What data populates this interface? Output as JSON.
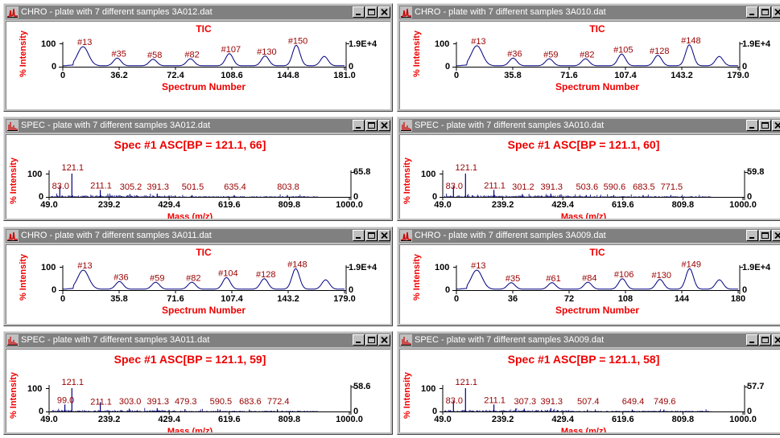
{
  "windows": [
    {
      "kind": "chro",
      "col": 0,
      "row": 0,
      "window_title": "CHRO - plate with 7 different samples 3A012.dat",
      "plot_title": "TIC",
      "y_label": "% Intensity",
      "y_top": "100",
      "y_zero": "0",
      "right_top": "1.9E+4",
      "right_zero": "0",
      "x_label": "Spectrum Number",
      "x_ticks": [
        "0",
        "36.2",
        "72.4",
        "108.6",
        "144.8",
        "181.0"
      ],
      "x_max": 181,
      "peaks": [
        {
          "label": "#13",
          "x": 13,
          "h": 0.82
        },
        {
          "label": "#35",
          "x": 35,
          "h": 0.33
        },
        {
          "label": "#58",
          "x": 58,
          "h": 0.28
        },
        {
          "label": "#82",
          "x": 82,
          "h": 0.3
        },
        {
          "label": "#107",
          "x": 107,
          "h": 0.52
        },
        {
          "label": "#130",
          "x": 130,
          "h": 0.42
        },
        {
          "label": "#150",
          "x": 150,
          "h": 0.88
        },
        {
          "label": "",
          "x": 168,
          "h": 0.4
        }
      ]
    },
    {
      "kind": "chro",
      "col": 1,
      "row": 0,
      "window_title": "CHRO - plate with 7 different samples 3A010.dat",
      "plot_title": "TIC",
      "y_label": "% Intensity",
      "y_top": "100",
      "y_zero": "0",
      "right_top": "1.9E+4",
      "right_zero": "0",
      "x_label": "Spectrum Number",
      "x_ticks": [
        "0",
        "35.8",
        "71.6",
        "107.4",
        "143.2",
        "179.0"
      ],
      "x_max": 179,
      "peaks": [
        {
          "label": "#13",
          "x": 13,
          "h": 0.86
        },
        {
          "label": "#36",
          "x": 36,
          "h": 0.33
        },
        {
          "label": "#59",
          "x": 59,
          "h": 0.3
        },
        {
          "label": "#82",
          "x": 82,
          "h": 0.3
        },
        {
          "label": "#105",
          "x": 105,
          "h": 0.5
        },
        {
          "label": "#128",
          "x": 128,
          "h": 0.45
        },
        {
          "label": "#148",
          "x": 148,
          "h": 0.9
        },
        {
          "label": "",
          "x": 167,
          "h": 0.4
        }
      ]
    },
    {
      "kind": "spec",
      "col": 0,
      "row": 1,
      "window_title": "SPEC - plate with 7 different samples 3A012.dat",
      "plot_title": "Spec #1 ASC[BP = 121.1, 66]",
      "y_label": "% Intensity",
      "y_top": "100",
      "y_zero": "0",
      "right_top": "65.8",
      "right_zero": "0",
      "x_label": "Mass (m/z)",
      "x_ticks": [
        "49.0",
        "239.2",
        "429.4",
        "619.6",
        "809.8",
        "1000.0"
      ],
      "x_min": 49,
      "x_max": 1000,
      "peaks": [
        {
          "label": "83.0",
          "x": 83,
          "h": 0.45
        },
        {
          "label": "121.1",
          "x": 121.1,
          "h": 1.0
        },
        {
          "label": "211.1",
          "x": 211.1,
          "h": 0.3
        },
        {
          "label": "305.2",
          "x": 305.2,
          "h": 0.12
        },
        {
          "label": "391.3",
          "x": 391.3,
          "h": 0.14
        },
        {
          "label": "501.5",
          "x": 501.5,
          "h": 0.08
        },
        {
          "label": "635.4",
          "x": 635.4,
          "h": 0.08
        },
        {
          "label": "803.8",
          "x": 803.8,
          "h": 0.08
        }
      ]
    },
    {
      "kind": "spec",
      "col": 1,
      "row": 1,
      "window_title": "SPEC - plate with 7 different samples 3A010.dat",
      "plot_title": "Spec #1 ASC[BP = 121.1, 60]",
      "y_label": "% Intensity",
      "y_top": "100",
      "y_zero": "0",
      "right_top": "59.8",
      "right_zero": "0",
      "x_label": "Mass (m/z)",
      "x_ticks": [
        "49.0",
        "239.2",
        "429.4",
        "619.6",
        "809.8",
        "1000.0"
      ],
      "x_min": 49,
      "x_max": 1000,
      "peaks": [
        {
          "label": "83.0",
          "x": 83,
          "h": 0.45
        },
        {
          "label": "121.1",
          "x": 121.1,
          "h": 1.0
        },
        {
          "label": "211.1",
          "x": 211.1,
          "h": 0.3
        },
        {
          "label": "301.2",
          "x": 301.2,
          "h": 0.12
        },
        {
          "label": "391.3",
          "x": 391.3,
          "h": 0.14
        },
        {
          "label": "503.6",
          "x": 503.6,
          "h": 0.08
        },
        {
          "label": "590.6",
          "x": 590.6,
          "h": 0.08
        },
        {
          "label": "683.5",
          "x": 683.5,
          "h": 0.08
        },
        {
          "label": "771.5",
          "x": 771.5,
          "h": 0.08
        }
      ]
    },
    {
      "kind": "chro",
      "col": 0,
      "row": 2,
      "window_title": "CHRO - plate with 7 different samples 3A011.dat",
      "plot_title": "TIC",
      "y_label": "% Intensity",
      "y_top": "100",
      "y_zero": "0",
      "right_top": "1.9E+4",
      "right_zero": "0",
      "x_label": "Spectrum Number",
      "x_ticks": [
        "0",
        "35.8",
        "71.6",
        "107.4",
        "143.2",
        "179.0"
      ],
      "x_max": 179,
      "peaks": [
        {
          "label": "#13",
          "x": 13,
          "h": 0.82
        },
        {
          "label": "#36",
          "x": 36,
          "h": 0.33
        },
        {
          "label": "#59",
          "x": 59,
          "h": 0.3
        },
        {
          "label": "#82",
          "x": 82,
          "h": 0.3
        },
        {
          "label": "#104",
          "x": 104,
          "h": 0.5
        },
        {
          "label": "#128",
          "x": 128,
          "h": 0.45
        },
        {
          "label": "#148",
          "x": 148,
          "h": 0.88
        },
        {
          "label": "",
          "x": 167,
          "h": 0.4
        }
      ]
    },
    {
      "kind": "chro",
      "col": 1,
      "row": 2,
      "window_title": "CHRO - plate with 7 different samples 3A009.dat",
      "plot_title": "TIC",
      "y_label": "% Intensity",
      "y_top": "100",
      "y_zero": "0",
      "right_top": "1.9E+4",
      "right_zero": "0",
      "x_label": "Spectrum Number",
      "x_ticks": [
        "0",
        "36",
        "72",
        "108",
        "144",
        "180"
      ],
      "x_max": 180,
      "peaks": [
        {
          "label": "#13",
          "x": 13,
          "h": 0.82
        },
        {
          "label": "#35",
          "x": 35,
          "h": 0.28
        },
        {
          "label": "#61",
          "x": 61,
          "h": 0.28
        },
        {
          "label": "#84",
          "x": 84,
          "h": 0.3
        },
        {
          "label": "#106",
          "x": 106,
          "h": 0.45
        },
        {
          "label": "#130",
          "x": 130,
          "h": 0.42
        },
        {
          "label": "#149",
          "x": 149,
          "h": 0.88
        },
        {
          "label": "",
          "x": 168,
          "h": 0.4
        }
      ]
    },
    {
      "kind": "spec",
      "col": 0,
      "row": 3,
      "window_title": "SPEC - plate with 7 different samples 3A011.dat",
      "plot_title": "Spec #1 ASC[BP = 121.1, 59]",
      "y_label": "% Intensity",
      "y_top": "100",
      "y_zero": "0",
      "right_top": "58.6",
      "right_zero": "0",
      "x_label": "Mass (m/z)",
      "x_ticks": [
        "49.0",
        "239.2",
        "429.4",
        "619.6",
        "809.8",
        "1000.0"
      ],
      "x_min": 49,
      "x_max": 1000,
      "peaks": [
        {
          "label": "99.0",
          "x": 99,
          "h": 0.3
        },
        {
          "label": "121.1",
          "x": 121.1,
          "h": 1.0
        },
        {
          "label": "211.1",
          "x": 211.1,
          "h": 0.4
        },
        {
          "label": "303.0",
          "x": 303,
          "h": 0.12
        },
        {
          "label": "391.3",
          "x": 391.3,
          "h": 0.14
        },
        {
          "label": "479.3",
          "x": 479.3,
          "h": 0.1
        },
        {
          "label": "590.5",
          "x": 590.5,
          "h": 0.08
        },
        {
          "label": "683.6",
          "x": 683.6,
          "h": 0.08
        },
        {
          "label": "772.4",
          "x": 772.4,
          "h": 0.08
        }
      ]
    },
    {
      "kind": "spec",
      "col": 1,
      "row": 3,
      "window_title": "SPEC - plate with 7 different samples 3A009.dat",
      "plot_title": "Spec #1 ASC[BP = 121.1, 58]",
      "y_label": "% Intensity",
      "y_top": "100",
      "y_zero": "0",
      "right_top": "57.7",
      "right_zero": "0",
      "x_label": "Mass (m/z)",
      "x_ticks": [
        "49.0",
        "239.2",
        "429.4",
        "619.6",
        "809.8",
        "1000.0"
      ],
      "x_min": 49,
      "x_max": 1000,
      "peaks": [
        {
          "label": "83.0",
          "x": 83,
          "h": 0.45
        },
        {
          "label": "121.1",
          "x": 121.1,
          "h": 1.0
        },
        {
          "label": "211.1",
          "x": 211.1,
          "h": 0.3
        },
        {
          "label": "307.3",
          "x": 307.3,
          "h": 0.12
        },
        {
          "label": "391.3",
          "x": 391.3,
          "h": 0.14
        },
        {
          "label": "507.4",
          "x": 507.4,
          "h": 0.08
        },
        {
          "label": "649.4",
          "x": 649.4,
          "h": 0.08
        },
        {
          "label": "749.6",
          "x": 749.6,
          "h": 0.08
        }
      ]
    }
  ],
  "colors": {
    "title_red": "#ee0000",
    "annotation": "#990000",
    "trace": "#000080",
    "titlebar": "#808080"
  },
  "icons": {
    "chro": "chromatogram-icon",
    "spec": "spectrum-icon",
    "buttons": [
      "minimize-icon",
      "maximize-icon",
      "close-icon"
    ]
  }
}
